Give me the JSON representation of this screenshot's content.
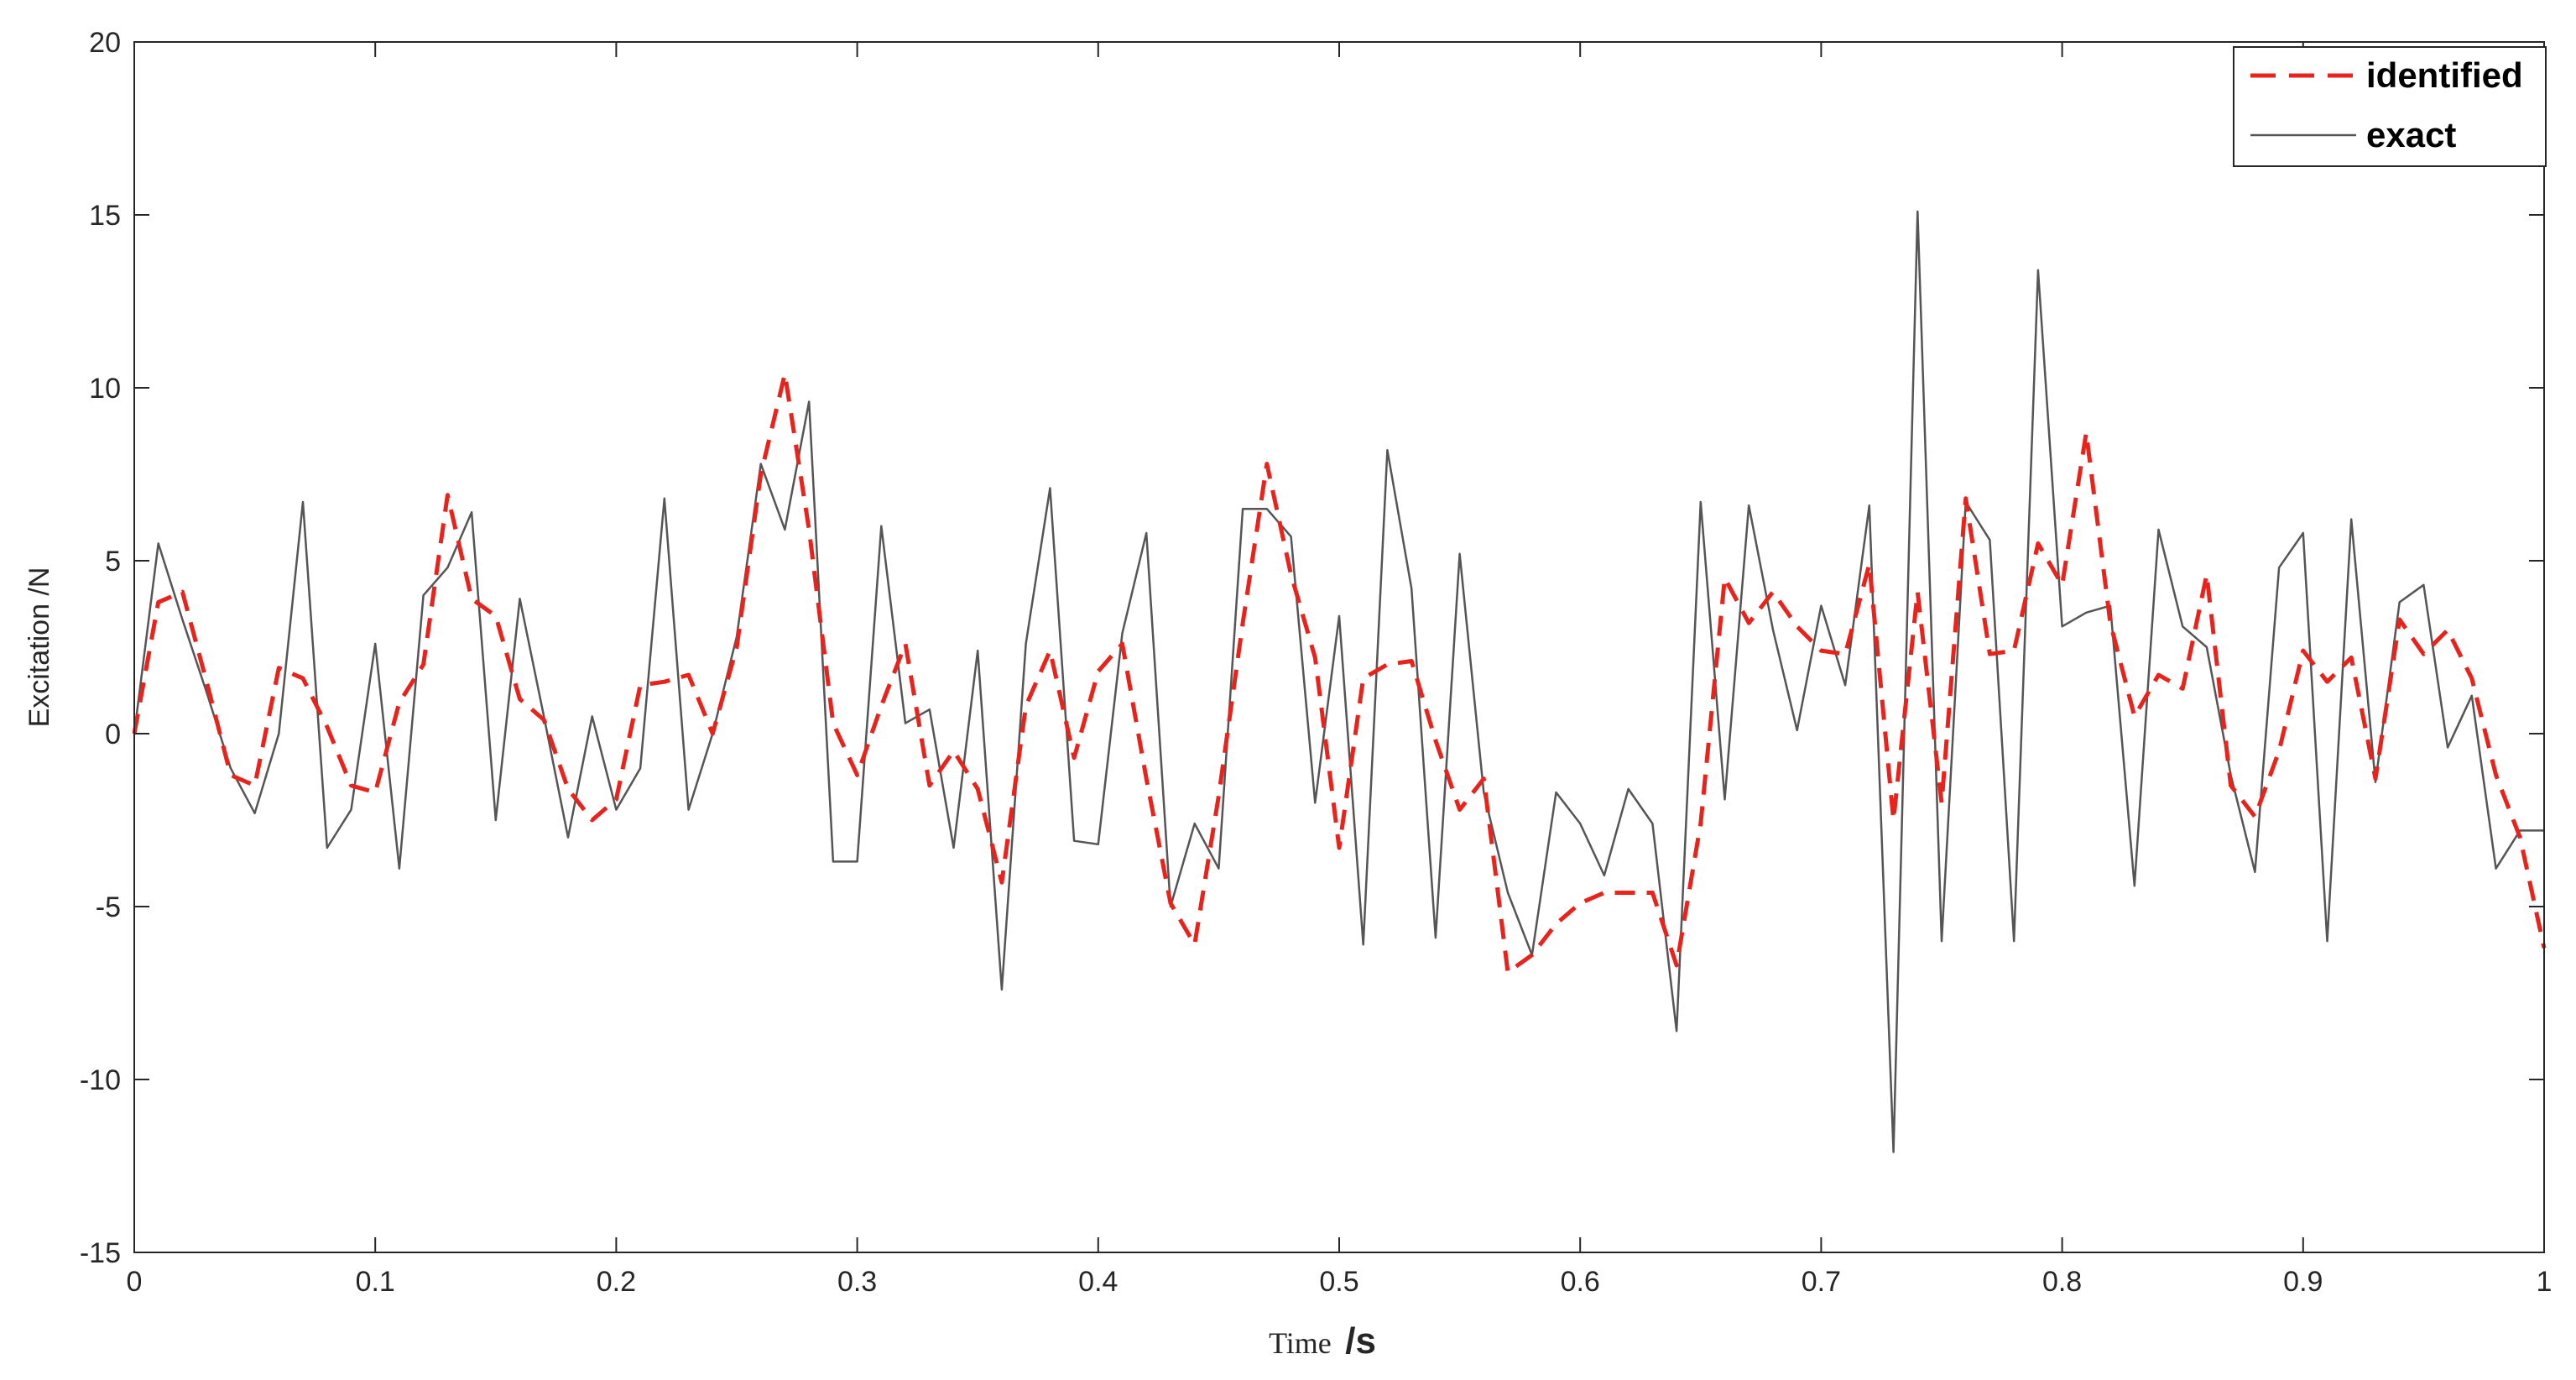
{
  "chart_data": {
    "type": "line",
    "title": "",
    "xlabel": {
      "main": "Time",
      "unit": "/s"
    },
    "ylabel": "Excitation /N",
    "xlim": [
      0,
      1
    ],
    "ylim": [
      -15,
      20
    ],
    "xticks": [
      0,
      0.1,
      0.2,
      0.3,
      0.4,
      0.5,
      0.6,
      0.7,
      0.8,
      0.9,
      1
    ],
    "xtick_labels": [
      "0",
      "0.1",
      "0.2",
      "0.3",
      "0.4",
      "0.5",
      "0.6",
      "0.7",
      "0.8",
      "0.9",
      "1"
    ],
    "yticks": [
      -15,
      -10,
      -5,
      0,
      5,
      10,
      15,
      20
    ],
    "ytick_labels": [
      "-15",
      "-10",
      "-5",
      "0",
      "5",
      "10",
      "15",
      "20"
    ],
    "grid": false,
    "legend_position": "top-right",
    "x": [
      0,
      0.01,
      0.02,
      0.03,
      0.04,
      0.05,
      0.06,
      0.07,
      0.08,
      0.09,
      0.1,
      0.11,
      0.12,
      0.13,
      0.14,
      0.15,
      0.16,
      0.17,
      0.18,
      0.19,
      0.2,
      0.21,
      0.22,
      0.23,
      0.24,
      0.25,
      0.26,
      0.27,
      0.28,
      0.29,
      0.3,
      0.31,
      0.32,
      0.33,
      0.34,
      0.35,
      0.36,
      0.37,
      0.38,
      0.39,
      0.4,
      0.41,
      0.42,
      0.43,
      0.44,
      0.45,
      0.46,
      0.47,
      0.48,
      0.49,
      0.5,
      0.51,
      0.52,
      0.53,
      0.54,
      0.55,
      0.56,
      0.57,
      0.58,
      0.59,
      0.6,
      0.61,
      0.62,
      0.63,
      0.64,
      0.65,
      0.66,
      0.67,
      0.68,
      0.69,
      0.7,
      0.71,
      0.72,
      0.73,
      0.74,
      0.75,
      0.76,
      0.77,
      0.78,
      0.79,
      0.8,
      0.81,
      0.82,
      0.83,
      0.84,
      0.85,
      0.86,
      0.87,
      0.88,
      0.89,
      0.9,
      0.91,
      0.92,
      0.93,
      0.94,
      0.95,
      0.96,
      0.97,
      0.98,
      0.99,
      1
    ],
    "series": [
      {
        "name": "identified",
        "color": "#e8231c",
        "style": "dashed",
        "values": [
          0,
          3.8,
          4.1,
          1.5,
          -1.2,
          -1.5,
          1.9,
          1.6,
          0.2,
          -1.5,
          -1.7,
          0.9,
          2.0,
          6.9,
          3.9,
          3.4,
          1.0,
          0.4,
          -1.6,
          -2.5,
          -1.9,
          1.4,
          1.5,
          1.7,
          0,
          2.5,
          7.5,
          10.4,
          5.9,
          0.3,
          -1.2,
          0.8,
          2.6,
          -1.5,
          -0.5,
          -1.6,
          -4.3,
          0.8,
          2.4,
          -0.7,
          1.8,
          2.6,
          -1.3,
          -4.9,
          -6.1,
          -1.8,
          3.2,
          7.8,
          4.6,
          2.2,
          -3.3,
          1.6,
          2.0,
          2.1,
          -0.2,
          -2.2,
          -1.3,
          -6.9,
          -6.4,
          -5.5,
          -4.9,
          -4.6,
          -4.6,
          -4.6,
          -6.7,
          -2.6,
          4.5,
          3.2,
          4.1,
          3.1,
          2.4,
          2.3,
          4.9,
          -2.5,
          4.1,
          -2.0,
          6.8,
          2.3,
          2.4,
          5.5,
          4.3,
          8.7,
          3.2,
          0.5,
          1.7,
          1.3,
          4.6,
          -1.5,
          -2.4,
          -0.5,
          2.4,
          1.5,
          2.2,
          -1.3,
          3.3,
          2.3,
          3.0,
          1.6,
          -1.2,
          -3.0,
          -6.2
        ]
      },
      {
        "name": "exact",
        "color": "#555555",
        "style": "solid",
        "values": [
          0,
          5.5,
          3.3,
          1.2,
          -1.0,
          -2.3,
          0,
          6.7,
          -3.3,
          -2.2,
          2.6,
          -3.9,
          4.0,
          4.8,
          6.4,
          -2.5,
          3.9,
          0.5,
          -3.0,
          0.5,
          -2.2,
          -1.0,
          6.8,
          -2.2,
          0,
          2.8,
          7.8,
          5.9,
          9.6,
          -3.7,
          -3.7,
          6.0,
          0.3,
          0.7,
          -3.3,
          2.4,
          -7.4,
          2.6,
          7.1,
          -3.1,
          -3.2,
          2.9,
          5.8,
          -5.0,
          -2.6,
          -3.9,
          6.5,
          6.5,
          5.7,
          -2.0,
          3.4,
          -6.1,
          8.2,
          4.2,
          -5.9,
          5.2,
          -1.7,
          -4.6,
          -6.4,
          -1.7,
          -2.6,
          -4.1,
          -1.6,
          -2.6,
          -8.6,
          6.7,
          -1.9,
          6.6,
          3.0,
          0.1,
          3.7,
          1.4,
          6.6,
          -12.1,
          15.1,
          -6.0,
          6.7,
          5.6,
          -6.0,
          13.4,
          3.1,
          3.5,
          3.7,
          -4.4,
          5.9,
          3.1,
          2.5,
          -1.2,
          -4.0,
          4.8,
          5.8,
          -6.0,
          6.2,
          -1.4,
          3.8,
          4.3,
          -0.4,
          1.1,
          -3.9,
          -2.8,
          -2.8
        ]
      }
    ]
  }
}
